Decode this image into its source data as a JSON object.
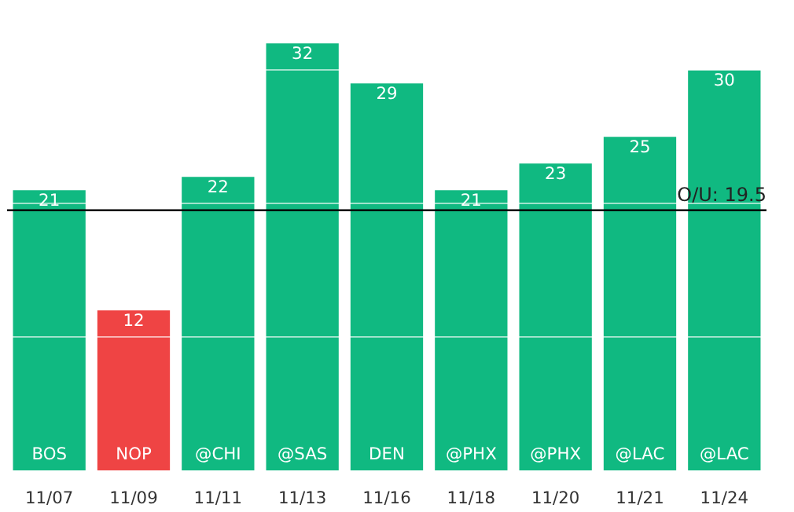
{
  "chart_data": {
    "type": "bar",
    "categories": [
      "11/07",
      "11/09",
      "11/11",
      "11/13",
      "11/16",
      "11/18",
      "11/20",
      "11/21",
      "11/24"
    ],
    "values": [
      21,
      12,
      22,
      32,
      29,
      21,
      23,
      25,
      30
    ],
    "colors": [
      "#10b981",
      "#ef4444",
      "#10b981",
      "#10b981",
      "#10b981",
      "#10b981",
      "#10b981",
      "#10b981",
      "#10b981"
    ],
    "data_labels": true,
    "yticks": [
      {
        "value": 10,
        "label": null
      },
      {
        "value": 20,
        "label": null
      },
      {
        "value": 30,
        "label": null
      }
    ],
    "grid": "y",
    "tick_labels": "x",
    "ref_lines": [
      {
        "axis": "y",
        "value": 19.5,
        "label": "O/U: 19.5",
        "color": "#000000"
      }
    ],
    "annotations": [
      {
        "text": "BOS",
        "x": "11/07",
        "y": 0
      },
      {
        "text": "NOP",
        "x": "11/09",
        "y": 0
      },
      {
        "text": "@CHI",
        "x": "11/11",
        "y": 0
      },
      {
        "text": "@SAS",
        "x": "11/13",
        "y": 0
      },
      {
        "text": "DEN",
        "x": "11/16",
        "y": 0
      },
      {
        "text": "@PHX",
        "x": "11/18",
        "y": 0
      },
      {
        "text": "@PHX",
        "x": "11/20",
        "y": 0
      },
      {
        "text": "@LAC",
        "x": "11/21",
        "y": 0
      },
      {
        "text": "@LAC",
        "x": "11/24",
        "y": 0
      }
    ]
  }
}
